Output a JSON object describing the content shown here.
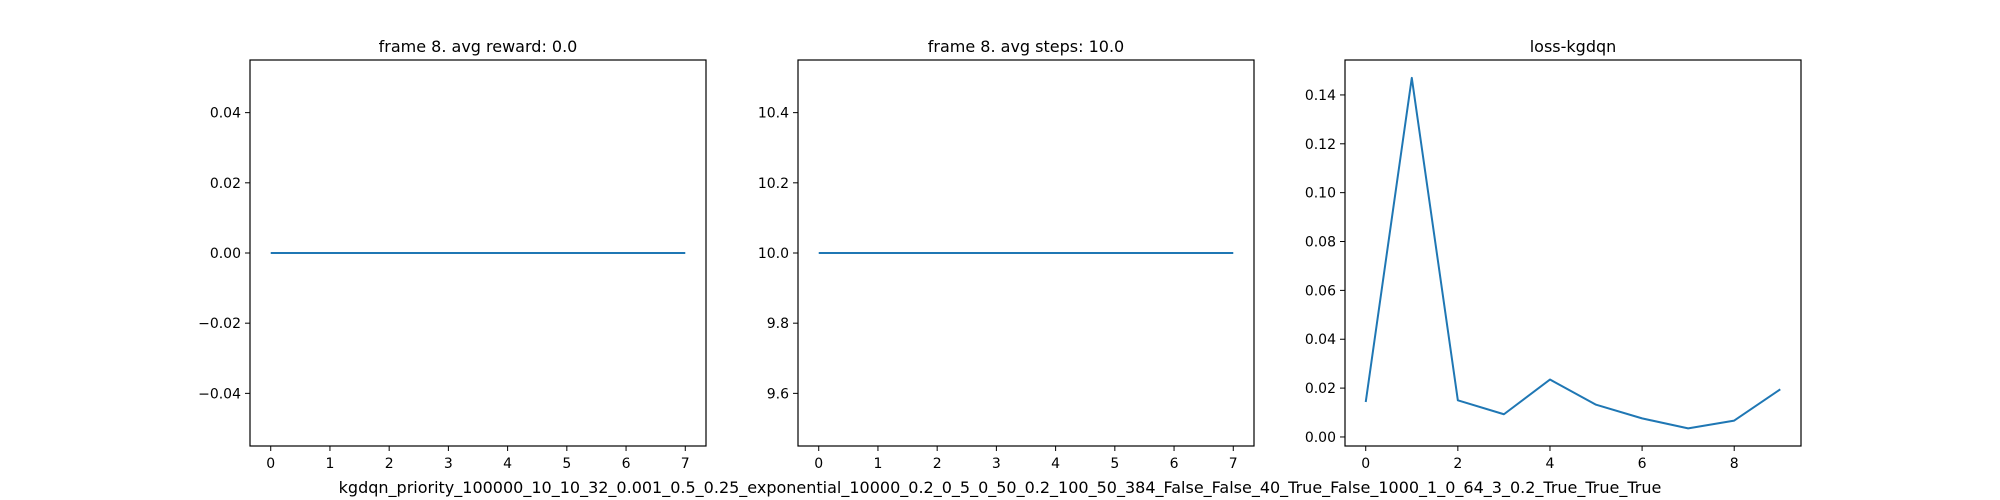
{
  "figure": {
    "caption": "kgdqn_priority_100000_10_10_32_0.001_0.5_0.25_exponential_10000_0.2_0_5_0_50_0.2_100_50_384_False_False_40_True_False_1000_1_0_64_3_0.2_True_True_True",
    "line_color": "#1f77b4"
  },
  "chart_data": [
    {
      "type": "line",
      "title": "frame 8. avg reward: 0.0",
      "xlabel": "",
      "ylabel": "",
      "x": [
        0,
        1,
        2,
        3,
        4,
        5,
        6,
        7
      ],
      "y": [
        0,
        0,
        0,
        0,
        0,
        0,
        0,
        0
      ],
      "xlim": [
        -0.35,
        7.35
      ],
      "ylim": [
        -0.055,
        0.055
      ],
      "xticks": [
        0,
        1,
        2,
        3,
        4,
        5,
        6,
        7
      ],
      "xtick_labels": [
        "0",
        "1",
        "2",
        "3",
        "4",
        "5",
        "6",
        "7"
      ],
      "yticks": [
        -0.04,
        -0.02,
        0.0,
        0.02,
        0.04
      ],
      "ytick_labels": [
        "−0.04",
        "−0.02",
        "0.00",
        "0.02",
        "0.04"
      ],
      "grid": false,
      "legend": false
    },
    {
      "type": "line",
      "title": "frame 8. avg steps: 10.0",
      "xlabel": "",
      "ylabel": "",
      "x": [
        0,
        1,
        2,
        3,
        4,
        5,
        6,
        7
      ],
      "y": [
        10,
        10,
        10,
        10,
        10,
        10,
        10,
        10
      ],
      "xlim": [
        -0.35,
        7.35
      ],
      "ylim": [
        9.45,
        10.55
      ],
      "xticks": [
        0,
        1,
        2,
        3,
        4,
        5,
        6,
        7
      ],
      "xtick_labels": [
        "0",
        "1",
        "2",
        "3",
        "4",
        "5",
        "6",
        "7"
      ],
      "yticks": [
        9.6,
        9.8,
        10.0,
        10.2,
        10.4
      ],
      "ytick_labels": [
        "9.6",
        "9.8",
        "10.0",
        "10.2",
        "10.4"
      ],
      "grid": false,
      "legend": false
    },
    {
      "type": "line",
      "title": "loss-kgdqn",
      "xlabel": "",
      "ylabel": "",
      "x": [
        0,
        1,
        2,
        3,
        4,
        5,
        6,
        7,
        8,
        9
      ],
      "y": [
        0.0143,
        0.147,
        0.015,
        0.0093,
        0.0235,
        0.0132,
        0.0076,
        0.0035,
        0.0067,
        0.0195
      ],
      "xlim": [
        -0.45,
        9.45
      ],
      "ylim": [
        -0.0037,
        0.1543
      ],
      "xticks": [
        0,
        2,
        4,
        6,
        8
      ],
      "xtick_labels": [
        "0",
        "2",
        "4",
        "6",
        "8"
      ],
      "yticks": [
        0.0,
        0.02,
        0.04,
        0.06,
        0.08,
        0.1,
        0.12,
        0.14
      ],
      "ytick_labels": [
        "0.00",
        "0.02",
        "0.04",
        "0.06",
        "0.08",
        "0.10",
        "0.12",
        "0.14"
      ],
      "grid": false,
      "legend": false
    }
  ]
}
